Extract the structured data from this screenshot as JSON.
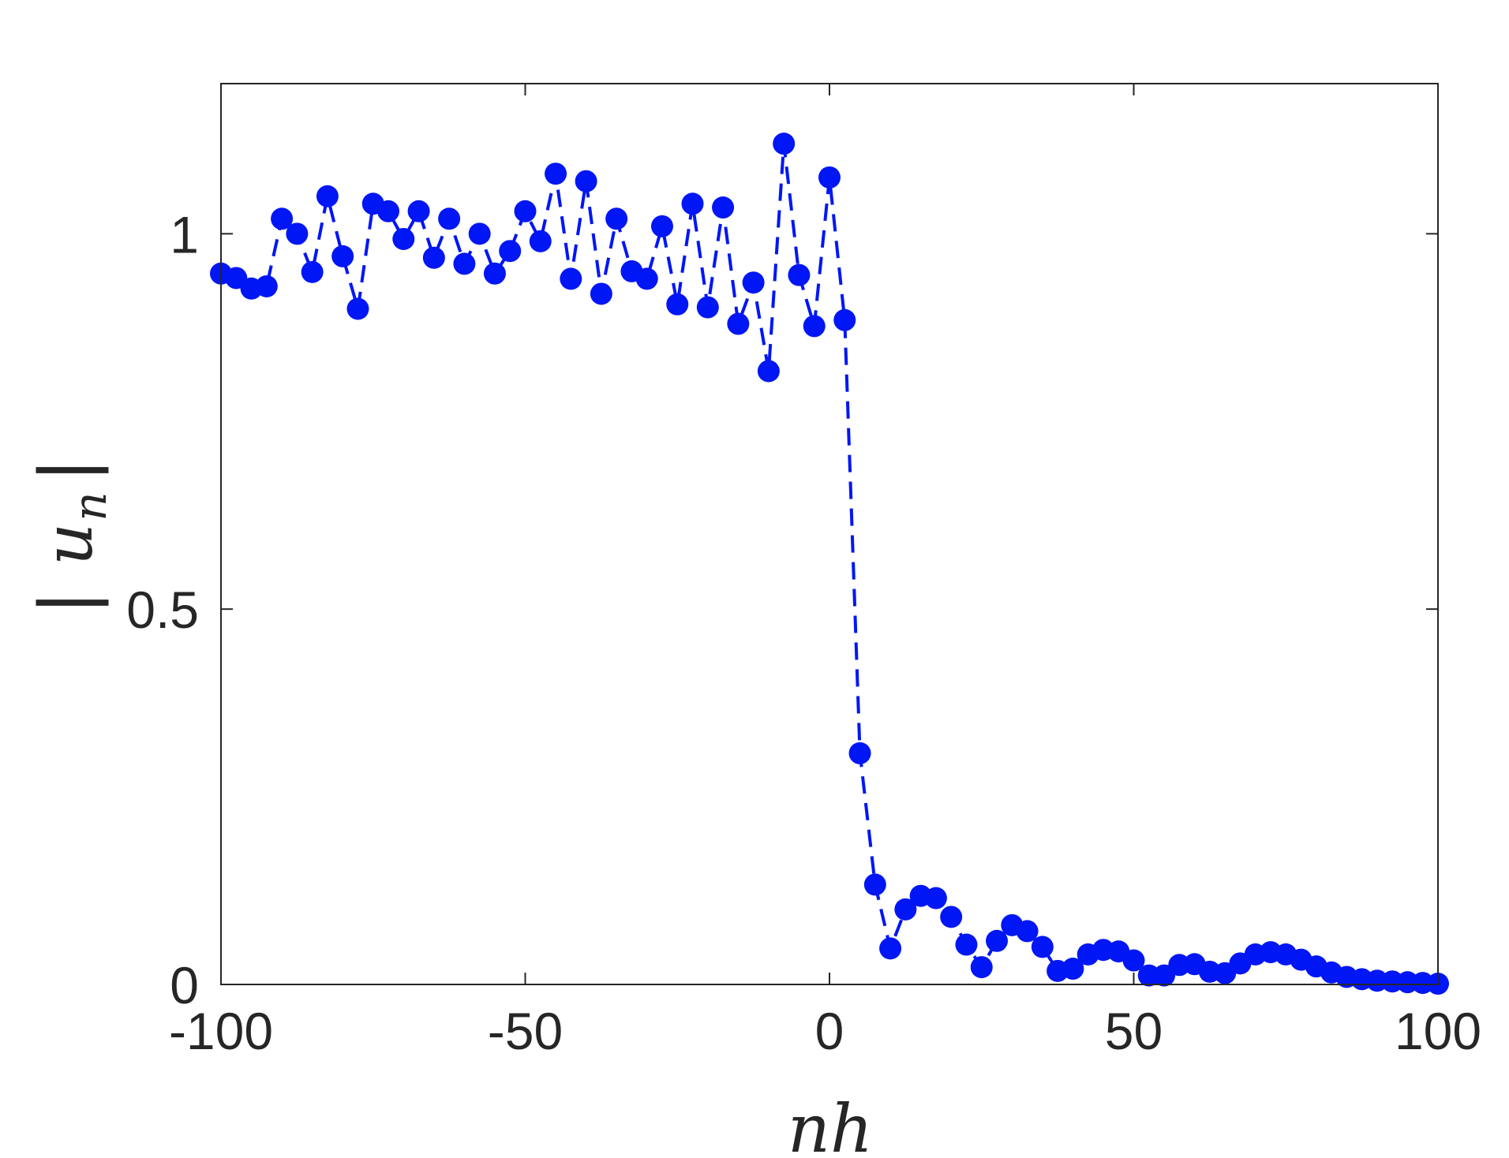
{
  "chart_data": {
    "type": "line",
    "title": "",
    "xlabel": "nh",
    "ylabel_var": "u",
    "ylabel_sub": "n",
    "xlim": [
      -100,
      100
    ],
    "ylim": [
      0,
      1.2
    ],
    "xticks": [
      -100,
      -50,
      0,
      50,
      100
    ],
    "xtick_labels": [
      "-100",
      "-50",
      "0",
      "50",
      "100"
    ],
    "yticks": [
      0,
      0.5,
      1
    ],
    "ytick_labels": [
      "0",
      "0.5",
      "1"
    ],
    "grid": false,
    "legend": "none",
    "line_style": "dashed",
    "marker": "filled-circle",
    "color": "#0016f5",
    "series": [
      {
        "x": [
          -100,
          -97.5,
          -95,
          -92.5,
          -90,
          -87.5,
          -85,
          -82.5,
          -80,
          -77.5,
          -75,
          -72.5,
          -70,
          -67.5,
          -65,
          -62.5,
          -60,
          -57.5,
          -55,
          -52.5,
          -50,
          -47.5,
          -45,
          -42.5,
          -40,
          -37.5,
          -35,
          -32.5,
          -30,
          -27.5,
          -25,
          -22.5,
          -20,
          -17.5,
          -15,
          -12.5,
          -10,
          -7.5,
          -5,
          -2.5,
          0,
          2.5,
          5,
          7.5,
          10,
          12.5,
          15,
          17.5,
          20,
          22.5,
          25,
          27.5,
          30,
          32.5,
          35,
          37.5,
          40,
          42.5,
          45,
          47.5,
          50,
          52.5,
          55,
          57.5,
          60,
          62.5,
          65,
          67.5,
          70,
          72.5,
          75,
          77.5,
          80,
          82.5,
          85,
          87.5,
          90,
          92.5,
          95,
          97.5,
          100
        ],
        "y": [
          0.947,
          0.941,
          0.927,
          0.93,
          1.02,
          1.0,
          0.949,
          1.05,
          0.97,
          0.9,
          1.04,
          1.03,
          0.993,
          1.03,
          0.968,
          1.02,
          0.96,
          1.0,
          0.947,
          0.977,
          1.03,
          0.99,
          1.08,
          0.94,
          1.07,
          0.92,
          1.02,
          0.95,
          0.94,
          1.01,
          0.906,
          1.04,
          0.902,
          1.035,
          0.88,
          0.935,
          0.817,
          1.12,
          0.945,
          0.877,
          1.075,
          0.885,
          0.308,
          0.133,
          0.048,
          0.1,
          0.118,
          0.115,
          0.09,
          0.053,
          0.023,
          0.058,
          0.079,
          0.071,
          0.05,
          0.018,
          0.021,
          0.04,
          0.046,
          0.044,
          0.032,
          0.012,
          0.012,
          0.026,
          0.027,
          0.017,
          0.015,
          0.028,
          0.04,
          0.043,
          0.04,
          0.033,
          0.024,
          0.016,
          0.01,
          0.007,
          0.005,
          0.004,
          0.003,
          0.002,
          0.001
        ]
      }
    ]
  }
}
